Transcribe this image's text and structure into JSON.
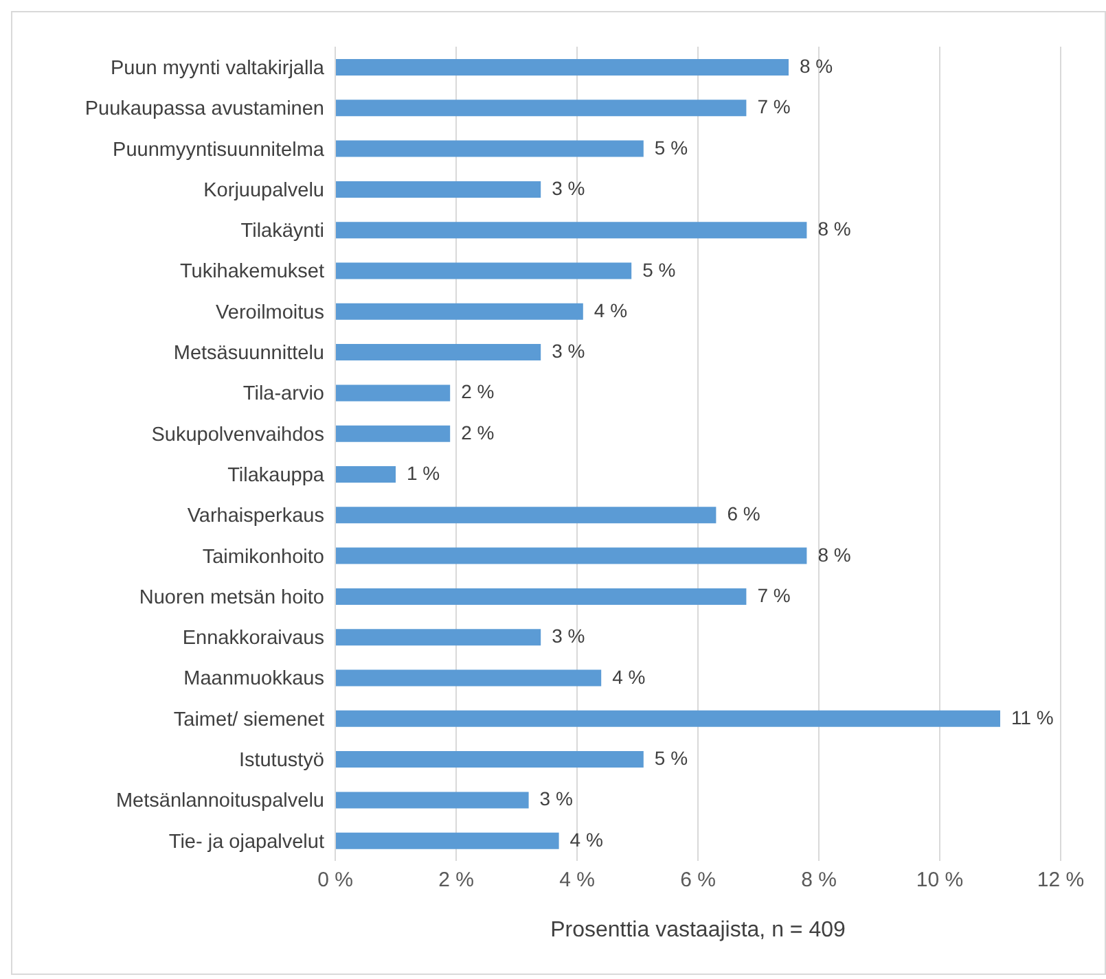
{
  "chart_data": {
    "type": "bar",
    "orientation": "horizontal",
    "xlabel": "Prosenttia vastaajista, n = 409",
    "categories": [
      "Puun myynti valtakirjalla",
      "Puukaupassa avustaminen",
      "Puunmyyntisuunnitelma",
      "Korjuupalvelu",
      "Tilakäynti",
      "Tukihakemukset",
      "Veroilmoitus",
      "Metsäsuunnittelu",
      "Tila-arvio",
      "Sukupolvenvaihdos",
      "Tilakauppa",
      "Varhaisperkaus",
      "Taimikonhoito",
      "Nuoren metsän hoito",
      "Ennakkoraivaus",
      "Maanmuokkaus",
      "Taimet/ siemenet",
      "Istutustyö",
      "Metsänlannoituspalvelu",
      "Tie- ja ojapalvelut"
    ],
    "values": [
      7.5,
      6.8,
      5.1,
      3.4,
      7.8,
      4.9,
      4.1,
      3.4,
      1.9,
      1.9,
      1.0,
      6.3,
      7.8,
      6.8,
      3.4,
      4.4,
      11.0,
      5.1,
      3.2,
      3.7
    ],
    "value_labels": [
      "8 %",
      "7 %",
      "5 %",
      "3 %",
      "8 %",
      "5 %",
      "4 %",
      "3 %",
      "2 %",
      "2 %",
      "1 %",
      "6 %",
      "8 %",
      "7 %",
      "3 %",
      "4 %",
      "11 %",
      "5 %",
      "3 %",
      "4 %"
    ],
    "color": "#5b9bd5",
    "xlim": [
      0,
      12
    ],
    "xticks": [
      {
        "value": 0,
        "label": "0 %"
      },
      {
        "value": 2,
        "label": "2 %"
      },
      {
        "value": 4,
        "label": "4 %"
      },
      {
        "value": 6,
        "label": "6 %"
      },
      {
        "value": 8,
        "label": "8 %"
      },
      {
        "value": 10,
        "label": "10 %"
      },
      {
        "value": 12,
        "label": "12 %"
      }
    ],
    "grid": "x"
  }
}
